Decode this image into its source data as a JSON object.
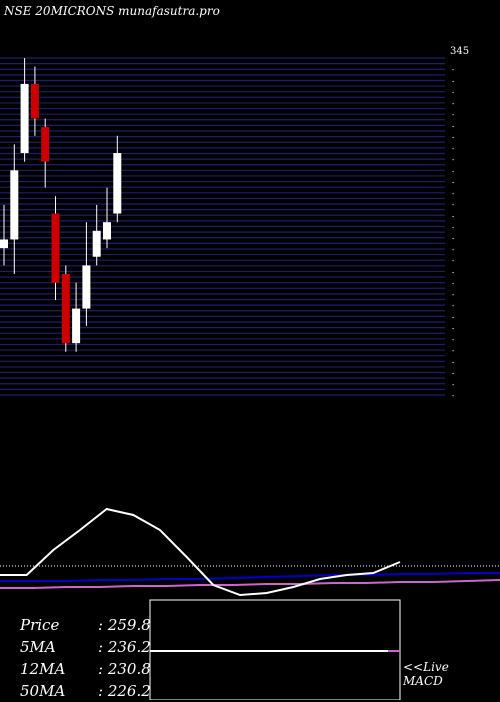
{
  "header": {
    "title": "NSE 20MICRONS munafasutra.pro"
  },
  "stats": {
    "price_label": "Price",
    "price_value": "259.8",
    "ma5_label": "5MA",
    "ma5_value": "236.2",
    "ma12_label": "12MA",
    "ma12_value": "230.8",
    "ma50_label": "50MA",
    "ma50_value": "226.2"
  },
  "macd_panel": {
    "label_line1": "<<Live",
    "label_line2": "MACD"
  },
  "colors": {
    "background": "#000000",
    "grid": "#1e1e6e",
    "bull_candle": "#ffffff",
    "bear_candle": "#cc0000",
    "macd_line": "#ffffff",
    "signal_line": "#0000cc",
    "ma_line": "#cc66cc"
  },
  "chart_data": [
    {
      "type": "candlestick",
      "title": "NSE 20MICRONS munafasutra.pro",
      "ylim": [
        150,
        345
      ],
      "top_tick_label": "345",
      "gridline_count": 60,
      "candles": [
        {
          "open": 235,
          "close": 240,
          "high": 260,
          "low": 225
        },
        {
          "open": 240,
          "close": 280,
          "high": 295,
          "low": 220
        },
        {
          "open": 290,
          "close": 330,
          "high": 345,
          "low": 285
        },
        {
          "open": 330,
          "close": 310,
          "high": 340,
          "low": 300
        },
        {
          "open": 305,
          "close": 285,
          "high": 310,
          "low": 270
        },
        {
          "open": 255,
          "close": 215,
          "high": 265,
          "low": 205
        },
        {
          "open": 220,
          "close": 180,
          "high": 225,
          "low": 175
        },
        {
          "open": 180,
          "close": 200,
          "high": 215,
          "low": 175
        },
        {
          "open": 200,
          "close": 225,
          "high": 250,
          "low": 190
        },
        {
          "open": 230,
          "close": 245,
          "high": 260,
          "low": 225
        },
        {
          "open": 240,
          "close": 250,
          "high": 270,
          "low": 235
        },
        {
          "open": 255,
          "close": 290,
          "high": 300,
          "low": 250
        }
      ]
    },
    {
      "type": "line",
      "name": "macd",
      "macd": [
        0,
        0,
        25,
        45,
        66,
        60,
        45,
        18,
        -10,
        -20,
        -18,
        -12,
        -4,
        0,
        2,
        13
      ],
      "signal": [
        -6,
        -6,
        -6,
        -5,
        -5,
        -4,
        -4,
        -3,
        -2,
        -1,
        0,
        0,
        1,
        1,
        2,
        2
      ],
      "ma": [
        -13,
        -13,
        -12,
        -12,
        -11,
        -11,
        -10,
        -10,
        -9,
        -9,
        -8,
        -8,
        -7,
        -7,
        -6,
        -5
      ]
    }
  ]
}
